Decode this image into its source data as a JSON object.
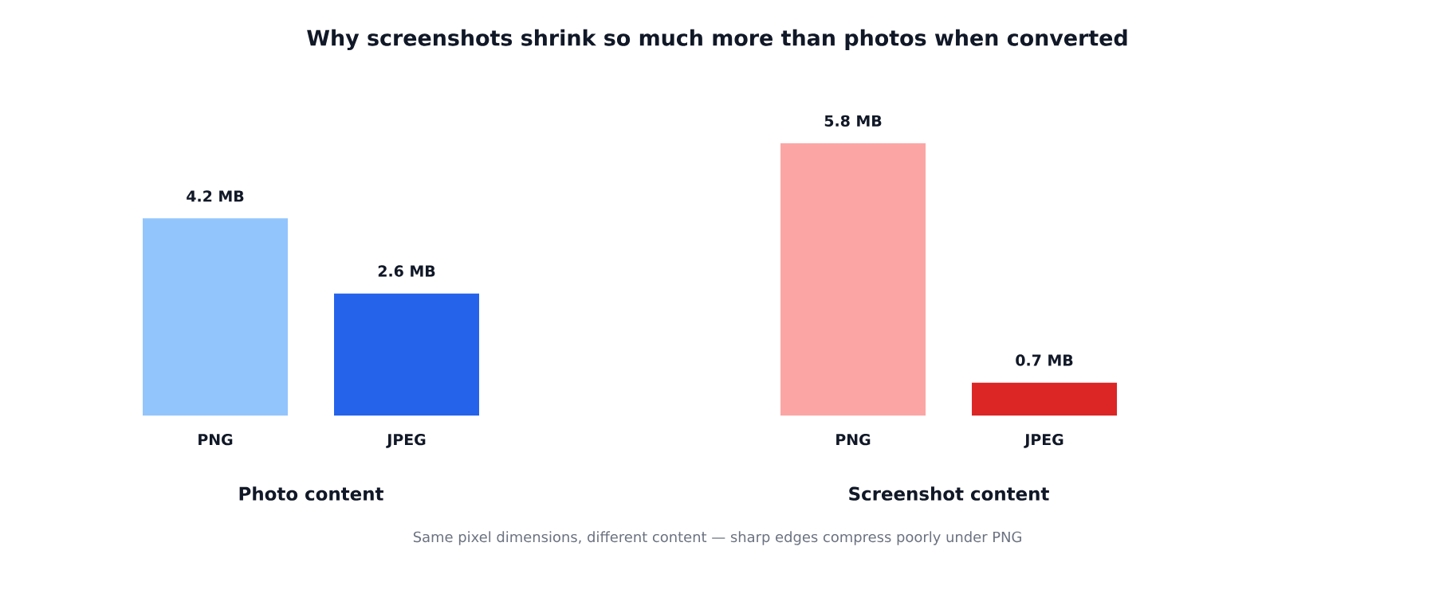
{
  "chart_data": {
    "type": "bar",
    "title": "Why screenshots shrink so much more than photos when converted",
    "categories": [
      "PNG",
      "JPEG",
      "PNG",
      "JPEG"
    ],
    "values": [
      4.2,
      2.6,
      5.8,
      0.7
    ],
    "value_labels": [
      "4.2 MB",
      "2.6 MB",
      "5.8 MB",
      "0.7 MB"
    ],
    "colors": [
      "#93c5fd",
      "#2563eb",
      "#fca5a5",
      "#dc2626"
    ],
    "ylim": [
      0,
      5.8
    ],
    "annotations": [
      "Photo content",
      "Screenshot content",
      "Same pixel dimensions, different content — sharp edges compress poorly under PNG"
    ]
  }
}
